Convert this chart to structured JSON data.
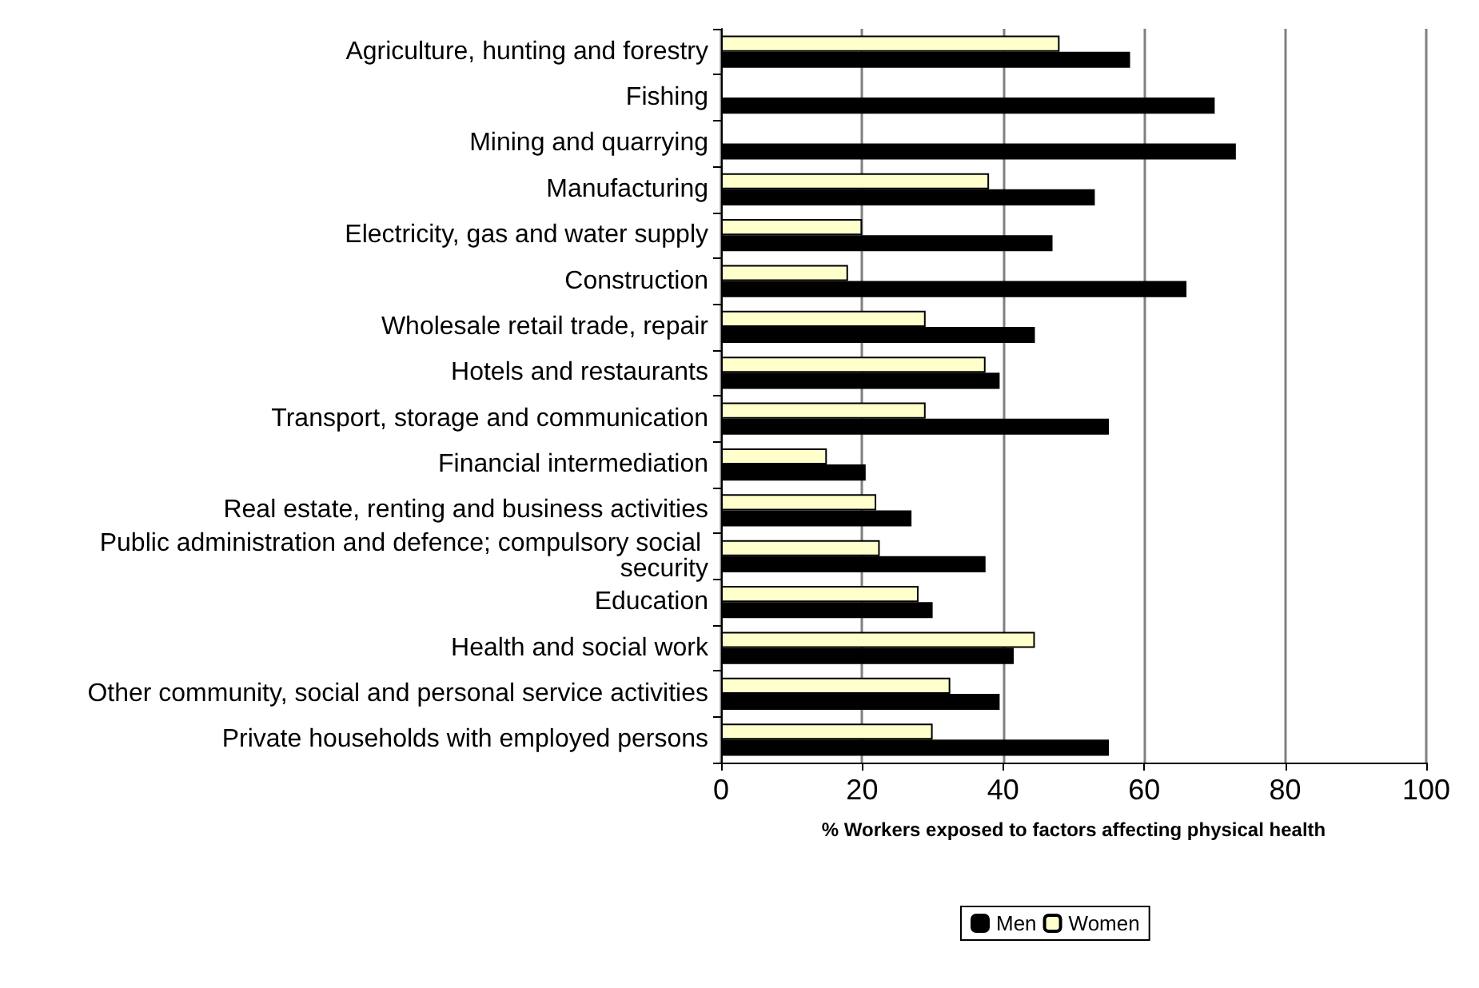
{
  "chart_data": {
    "type": "bar",
    "orientation": "horizontal",
    "xlabel": "% Workers exposed to factors affecting physical health",
    "categories": [
      "Agriculture, hunting and forestry",
      "Fishing",
      "Mining and quarrying",
      "Manufacturing",
      "Electricity, gas and water supply",
      "Construction",
      "Wholesale retail trade, repair",
      "Hotels and restaurants",
      "Transport, storage and communication",
      "Financial intermediation",
      "Real estate, renting and business activities",
      "Public administration and defence; compulsory social security",
      "Education",
      "Health and social work",
      "Other community, social and personal service activities",
      "Private households with employed persons"
    ],
    "series": [
      {
        "name": "Men",
        "color": "#000000",
        "values": [
          58,
          70,
          73,
          53,
          47,
          66,
          44.5,
          39.5,
          55,
          20.5,
          27,
          37.5,
          30,
          41.5,
          39.5,
          55
        ]
      },
      {
        "name": "Women",
        "color": "#ffffcc",
        "values": [
          48,
          null,
          null,
          38,
          20,
          18,
          29,
          37.5,
          29,
          15,
          22,
          22.5,
          28,
          44.5,
          32.5,
          30
        ]
      }
    ],
    "xlim": [
      0,
      100
    ],
    "xticks": [
      0,
      20,
      40,
      60,
      80,
      100
    ],
    "grid": "x",
    "legend": "bottom"
  }
}
